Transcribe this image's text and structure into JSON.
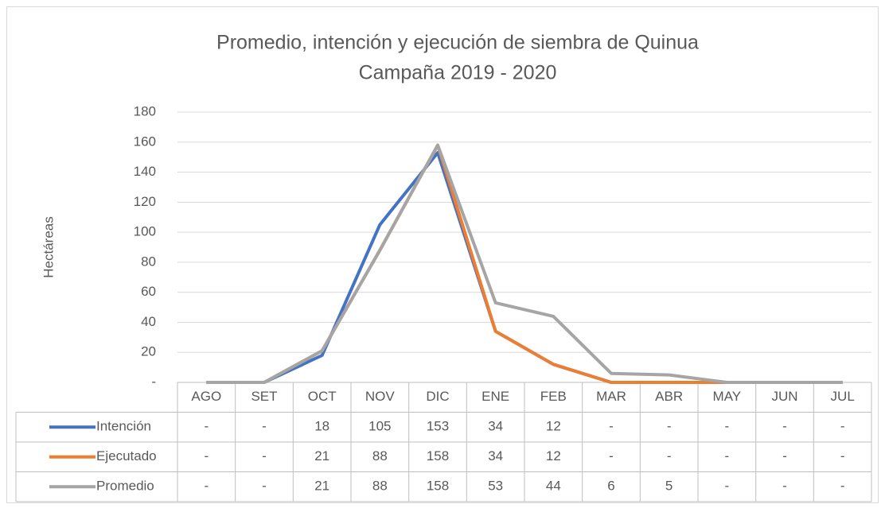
{
  "chart_data": {
    "type": "line",
    "title": "Promedio, intención y ejecución de siembra de Quinua",
    "subtitle": "Campaña 2019 - 2020",
    "y_label": "Hectáreas",
    "categories": [
      "AGO",
      "SET",
      "OCT",
      "NOV",
      "DIC",
      "ENE",
      "FEB",
      "MAR",
      "ABR",
      "MAY",
      "JUN",
      "JUL"
    ],
    "series": [
      {
        "name": "Intención",
        "color": "#4472c4",
        "values": [
          0,
          0,
          18,
          105,
          153,
          34,
          12,
          0,
          0,
          0,
          0,
          0
        ],
        "value_labels": [
          "-",
          "-",
          "18",
          "105",
          "153",
          "34",
          "12",
          "-",
          "-",
          "-",
          "-",
          "-"
        ]
      },
      {
        "name": "Ejecutado",
        "color": "#ed7d31",
        "values": [
          0,
          0,
          21,
          88,
          158,
          34,
          12,
          0,
          0,
          0,
          0,
          0
        ],
        "value_labels": [
          "-",
          "-",
          "21",
          "88",
          "158",
          "34",
          "12",
          "-",
          "-",
          "-",
          "-",
          "-"
        ]
      },
      {
        "name": "Promedio",
        "color": "#a5a5a5",
        "values": [
          0,
          0,
          21,
          88,
          158,
          53,
          44,
          6,
          5,
          0,
          0,
          0
        ],
        "value_labels": [
          "-",
          "-",
          "21",
          "88",
          "158",
          "53",
          "44",
          "6",
          "5",
          "-",
          "-",
          "-"
        ]
      }
    ],
    "ylim": [
      0,
      180
    ],
    "yticks": [
      {
        "value": 0,
        "label": "-"
      },
      20,
      40,
      60,
      80,
      100,
      120,
      140,
      160,
      180
    ],
    "grid": true
  }
}
